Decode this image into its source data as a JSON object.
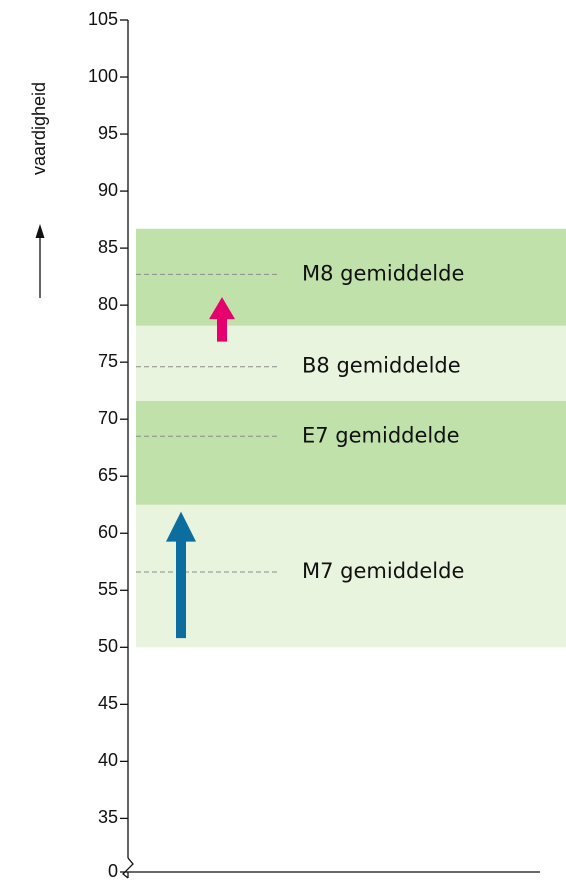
{
  "chart_data": {
    "type": "range-bands",
    "ylabel": "vaardigheid",
    "ylim": [
      0,
      105
    ],
    "axis_break": [
      0,
      30.3
    ],
    "yticks": [
      0,
      35,
      40,
      45,
      50,
      55,
      60,
      65,
      70,
      75,
      80,
      85,
      90,
      95,
      100,
      105
    ],
    "bands": [
      {
        "name": "M7 gemiddelde",
        "range": [
          50,
          62.5
        ],
        "mean": 56.6,
        "color": "#e8f4de"
      },
      {
        "name": "E7 gemiddelde",
        "range": [
          62.5,
          71.6
        ],
        "mean": 68.5,
        "color": "#c0e1aa"
      },
      {
        "name": "B8 gemiddelde",
        "range": [
          71.6,
          78.2
        ],
        "mean": 74.6,
        "color": "#e8f4de"
      },
      {
        "name": "M8 gemiddelde",
        "range": [
          78.2,
          86.7
        ],
        "mean": 82.7,
        "color": "#c0e1aa"
      }
    ],
    "arrows": [
      {
        "range": [
          50.8,
          61.9
        ],
        "color": "#0c6e9e"
      },
      {
        "range": [
          76.8,
          80.7
        ],
        "color": "#e5006e"
      }
    ]
  }
}
